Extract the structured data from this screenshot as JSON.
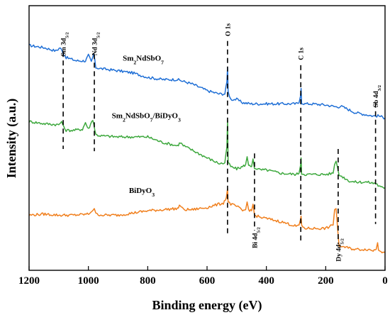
{
  "chart_data": {
    "type": "line",
    "title": "",
    "xlabel": "Binding energy (eV)",
    "ylabel": "Intensity (a.u.)",
    "xlim": [
      1200,
      0
    ],
    "x_reversed": true,
    "y_ticks_shown": false,
    "grid": false,
    "xticks": [
      1200,
      1000,
      800,
      600,
      400,
      200,
      0
    ],
    "xtick_labels": [
      "1200",
      "1000",
      "800",
      "600",
      "400",
      "200",
      "0"
    ],
    "series": [
      {
        "name": "Sm2NdSbO7",
        "label_main": "Sm",
        "label_parts": [
          {
            "t": "Sm",
            "sub": false
          },
          {
            "t": "2",
            "sub": true
          },
          {
            "t": "NdSbO",
            "sub": false
          },
          {
            "t": "7",
            "sub": true
          }
        ],
        "label_x": 815,
        "color": "#1f6fd6",
        "points": [
          [
            1200,
            8.0
          ],
          [
            1150,
            7.9
          ],
          [
            1110,
            7.75
          ],
          [
            1095,
            7.9
          ],
          [
            1085,
            7.65
          ],
          [
            1075,
            7.45
          ],
          [
            1040,
            7.3
          ],
          [
            1010,
            7.3
          ],
          [
            1000,
            7.55
          ],
          [
            990,
            7.25
          ],
          [
            982,
            7.6
          ],
          [
            975,
            7.0
          ],
          [
            960,
            6.95
          ],
          [
            900,
            6.85
          ],
          [
            850,
            6.75
          ],
          [
            800,
            6.55
          ],
          [
            750,
            6.45
          ],
          [
            700,
            6.45
          ],
          [
            650,
            6.25
          ],
          [
            600,
            5.95
          ],
          [
            560,
            5.8
          ],
          [
            540,
            5.8
          ],
          [
            533,
            6.35
          ],
          [
            531,
            7.0
          ],
          [
            529,
            5.9
          ],
          [
            520,
            5.55
          ],
          [
            500,
            5.55
          ],
          [
            480,
            5.4
          ],
          [
            450,
            5.35
          ],
          [
            400,
            5.35
          ],
          [
            350,
            5.35
          ],
          [
            300,
            5.35
          ],
          [
            290,
            5.4
          ],
          [
            285,
            5.7
          ],
          [
            283,
            6.05
          ],
          [
            281,
            5.4
          ],
          [
            270,
            5.35
          ],
          [
            250,
            5.35
          ],
          [
            200,
            5.3
          ],
          [
            160,
            5.2
          ],
          [
            150,
            5.25
          ],
          [
            100,
            4.95
          ],
          [
            60,
            4.85
          ],
          [
            40,
            4.8
          ],
          [
            20,
            4.8
          ],
          [
            0,
            4.7
          ]
        ]
      },
      {
        "name": "Sm2NdSbO7/BiDyO3",
        "label_parts": [
          {
            "t": "Sm",
            "sub": false
          },
          {
            "t": "2",
            "sub": true
          },
          {
            "t": "NdSbO",
            "sub": false
          },
          {
            "t": "7",
            "sub": true
          },
          {
            "t": "/BiDyO",
            "sub": false
          },
          {
            "t": "3",
            "sub": true
          }
        ],
        "label_x": 805,
        "color": "#3da83d",
        "points": [
          [
            1200,
            4.55
          ],
          [
            1150,
            4.45
          ],
          [
            1100,
            4.4
          ],
          [
            1090,
            4.55
          ],
          [
            1084,
            4.3
          ],
          [
            1075,
            4.15
          ],
          [
            1050,
            4.15
          ],
          [
            1020,
            4.2
          ],
          [
            1010,
            4.5
          ],
          [
            1000,
            4.2
          ],
          [
            985,
            4.65
          ],
          [
            975,
            3.95
          ],
          [
            960,
            3.9
          ],
          [
            900,
            3.85
          ],
          [
            850,
            3.85
          ],
          [
            800,
            3.85
          ],
          [
            750,
            3.6
          ],
          [
            700,
            3.45
          ],
          [
            690,
            3.6
          ],
          [
            680,
            3.45
          ],
          [
            650,
            3.25
          ],
          [
            600,
            2.9
          ],
          [
            560,
            2.65
          ],
          [
            540,
            2.65
          ],
          [
            533,
            3.4
          ],
          [
            531,
            4.6
          ],
          [
            529,
            2.7
          ],
          [
            520,
            2.5
          ],
          [
            500,
            2.4
          ],
          [
            480,
            2.5
          ],
          [
            470,
            2.6
          ],
          [
            465,
            2.95
          ],
          [
            460,
            2.55
          ],
          [
            450,
            2.5
          ],
          [
            445,
            2.85
          ],
          [
            440,
            2.45
          ],
          [
            420,
            2.35
          ],
          [
            400,
            2.35
          ],
          [
            350,
            2.2
          ],
          [
            300,
            2.15
          ],
          [
            290,
            2.2
          ],
          [
            285,
            2.55
          ],
          [
            283,
            2.9
          ],
          [
            281,
            2.2
          ],
          [
            270,
            2.15
          ],
          [
            250,
            2.15
          ],
          [
            200,
            2.15
          ],
          [
            175,
            2.2
          ],
          [
            170,
            2.6
          ],
          [
            165,
            2.75
          ],
          [
            160,
            2.45
          ],
          [
            155,
            2.1
          ],
          [
            150,
            2.1
          ],
          [
            120,
            1.85
          ],
          [
            100,
            1.8
          ],
          [
            60,
            1.8
          ],
          [
            40,
            1.75
          ],
          [
            30,
            1.75
          ],
          [
            20,
            1.6
          ],
          [
            10,
            1.55
          ],
          [
            0,
            1.55
          ]
        ]
      },
      {
        "name": "BiDyO3",
        "label_parts": [
          {
            "t": "BiDyO",
            "sub": false
          },
          {
            "t": "3",
            "sub": true
          }
        ],
        "label_x": 820,
        "color": "#f07f1d",
        "points": [
          [
            1200,
            0.3
          ],
          [
            1150,
            0.35
          ],
          [
            1100,
            0.3
          ],
          [
            1050,
            0.3
          ],
          [
            1000,
            0.35
          ],
          [
            980,
            0.6
          ],
          [
            975,
            0.35
          ],
          [
            950,
            0.3
          ],
          [
            900,
            0.3
          ],
          [
            850,
            0.4
          ],
          [
            800,
            0.5
          ],
          [
            750,
            0.55
          ],
          [
            700,
            0.6
          ],
          [
            690,
            0.75
          ],
          [
            680,
            0.55
          ],
          [
            650,
            0.55
          ],
          [
            600,
            0.65
          ],
          [
            560,
            0.8
          ],
          [
            545,
            0.85
          ],
          [
            535,
            1.1
          ],
          [
            531,
            1.5
          ],
          [
            529,
            0.9
          ],
          [
            520,
            0.8
          ],
          [
            500,
            0.7
          ],
          [
            480,
            0.5
          ],
          [
            470,
            0.55
          ],
          [
            465,
            0.9
          ],
          [
            460,
            0.55
          ],
          [
            450,
            0.5
          ],
          [
            445,
            0.8
          ],
          [
            440,
            0.3
          ],
          [
            420,
            0.2
          ],
          [
            400,
            0.15
          ],
          [
            350,
            0.0
          ],
          [
            300,
            -0.2
          ],
          [
            290,
            -0.15
          ],
          [
            285,
            0.1
          ],
          [
            283,
            0.25
          ],
          [
            281,
            -0.2
          ],
          [
            270,
            -0.3
          ],
          [
            250,
            -0.3
          ],
          [
            200,
            -0.3
          ],
          [
            175,
            -0.15
          ],
          [
            170,
            0.55
          ],
          [
            165,
            0.6
          ],
          [
            160,
            -0.3
          ],
          [
            155,
            -1.1
          ],
          [
            150,
            -1.1
          ],
          [
            120,
            -1.2
          ],
          [
            100,
            -1.25
          ],
          [
            60,
            -1.25
          ],
          [
            40,
            -1.3
          ],
          [
            30,
            -1.25
          ],
          [
            25,
            -0.95
          ],
          [
            22,
            -1.25
          ],
          [
            10,
            -1.35
          ],
          [
            0,
            -1.35
          ]
        ]
      }
    ],
    "annotations": [
      {
        "id": "sm",
        "x": 1085,
        "y1": 7.7,
        "y2": 3.3,
        "label_parts": [
          {
            "t": "Sm 3d",
            "sub": false
          },
          {
            "t": "5/2",
            "sub": true
          }
        ],
        "label_pos": "top",
        "label_y": 8.6
      },
      {
        "id": "nd",
        "x": 980,
        "y1": 7.6,
        "y2": 3.2,
        "label_parts": [
          {
            "t": "Nd 3d",
            "sub": false
          },
          {
            "t": "5/2",
            "sub": true
          }
        ],
        "label_pos": "top",
        "label_y": 8.6
      },
      {
        "id": "o",
        "x": 531,
        "y1": 8.2,
        "y2": -0.6,
        "label_parts": [
          {
            "t": "O 1s",
            "sub": false
          }
        ],
        "label_pos": "top",
        "label_y": 9.0
      },
      {
        "id": "c",
        "x": 284,
        "y1": 7.1,
        "y2": -1.0,
        "label_parts": [
          {
            "t": "C 1s",
            "sub": false
          }
        ],
        "label_pos": "top",
        "label_y": 7.9
      },
      {
        "id": "sb",
        "x": 32,
        "y1": 5.4,
        "y2": -0.1,
        "label_parts": [
          {
            "t": "Sb 4d",
            "sub": false
          },
          {
            "t": "3/2",
            "sub": true
          }
        ],
        "label_pos": "top",
        "label_y": 6.2
      },
      {
        "id": "bi",
        "x": 440,
        "y1": 3.1,
        "y2": -0.4,
        "label_parts": [
          {
            "t": "Bi 4d",
            "sub": false
          },
          {
            "t": "5/2",
            "sub": true
          }
        ],
        "label_pos": "bottom",
        "label_y": -1.2
      },
      {
        "id": "dy",
        "x": 158,
        "y1": 3.3,
        "y2": -1.0,
        "label_parts": [
          {
            "t": "Dy 4d",
            "sub": false
          },
          {
            "t": "5/2",
            "sub": true
          }
        ],
        "label_pos": "bottom",
        "label_y": -1.8
      }
    ],
    "series_label_y_offsets": [
      0.75,
      0.85,
      0.8
    ]
  }
}
